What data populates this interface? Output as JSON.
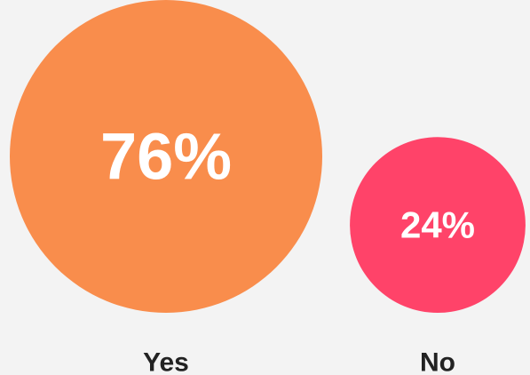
{
  "chart_data": {
    "type": "bubble",
    "categories": [
      "Yes",
      "No"
    ],
    "values": [
      76,
      24
    ],
    "value_labels": [
      "76%",
      "24%"
    ],
    "colors": [
      "#f98d4c",
      "#ff4369"
    ],
    "title": "",
    "xlabel": "",
    "ylabel": "",
    "legend": "none",
    "grid": false
  }
}
